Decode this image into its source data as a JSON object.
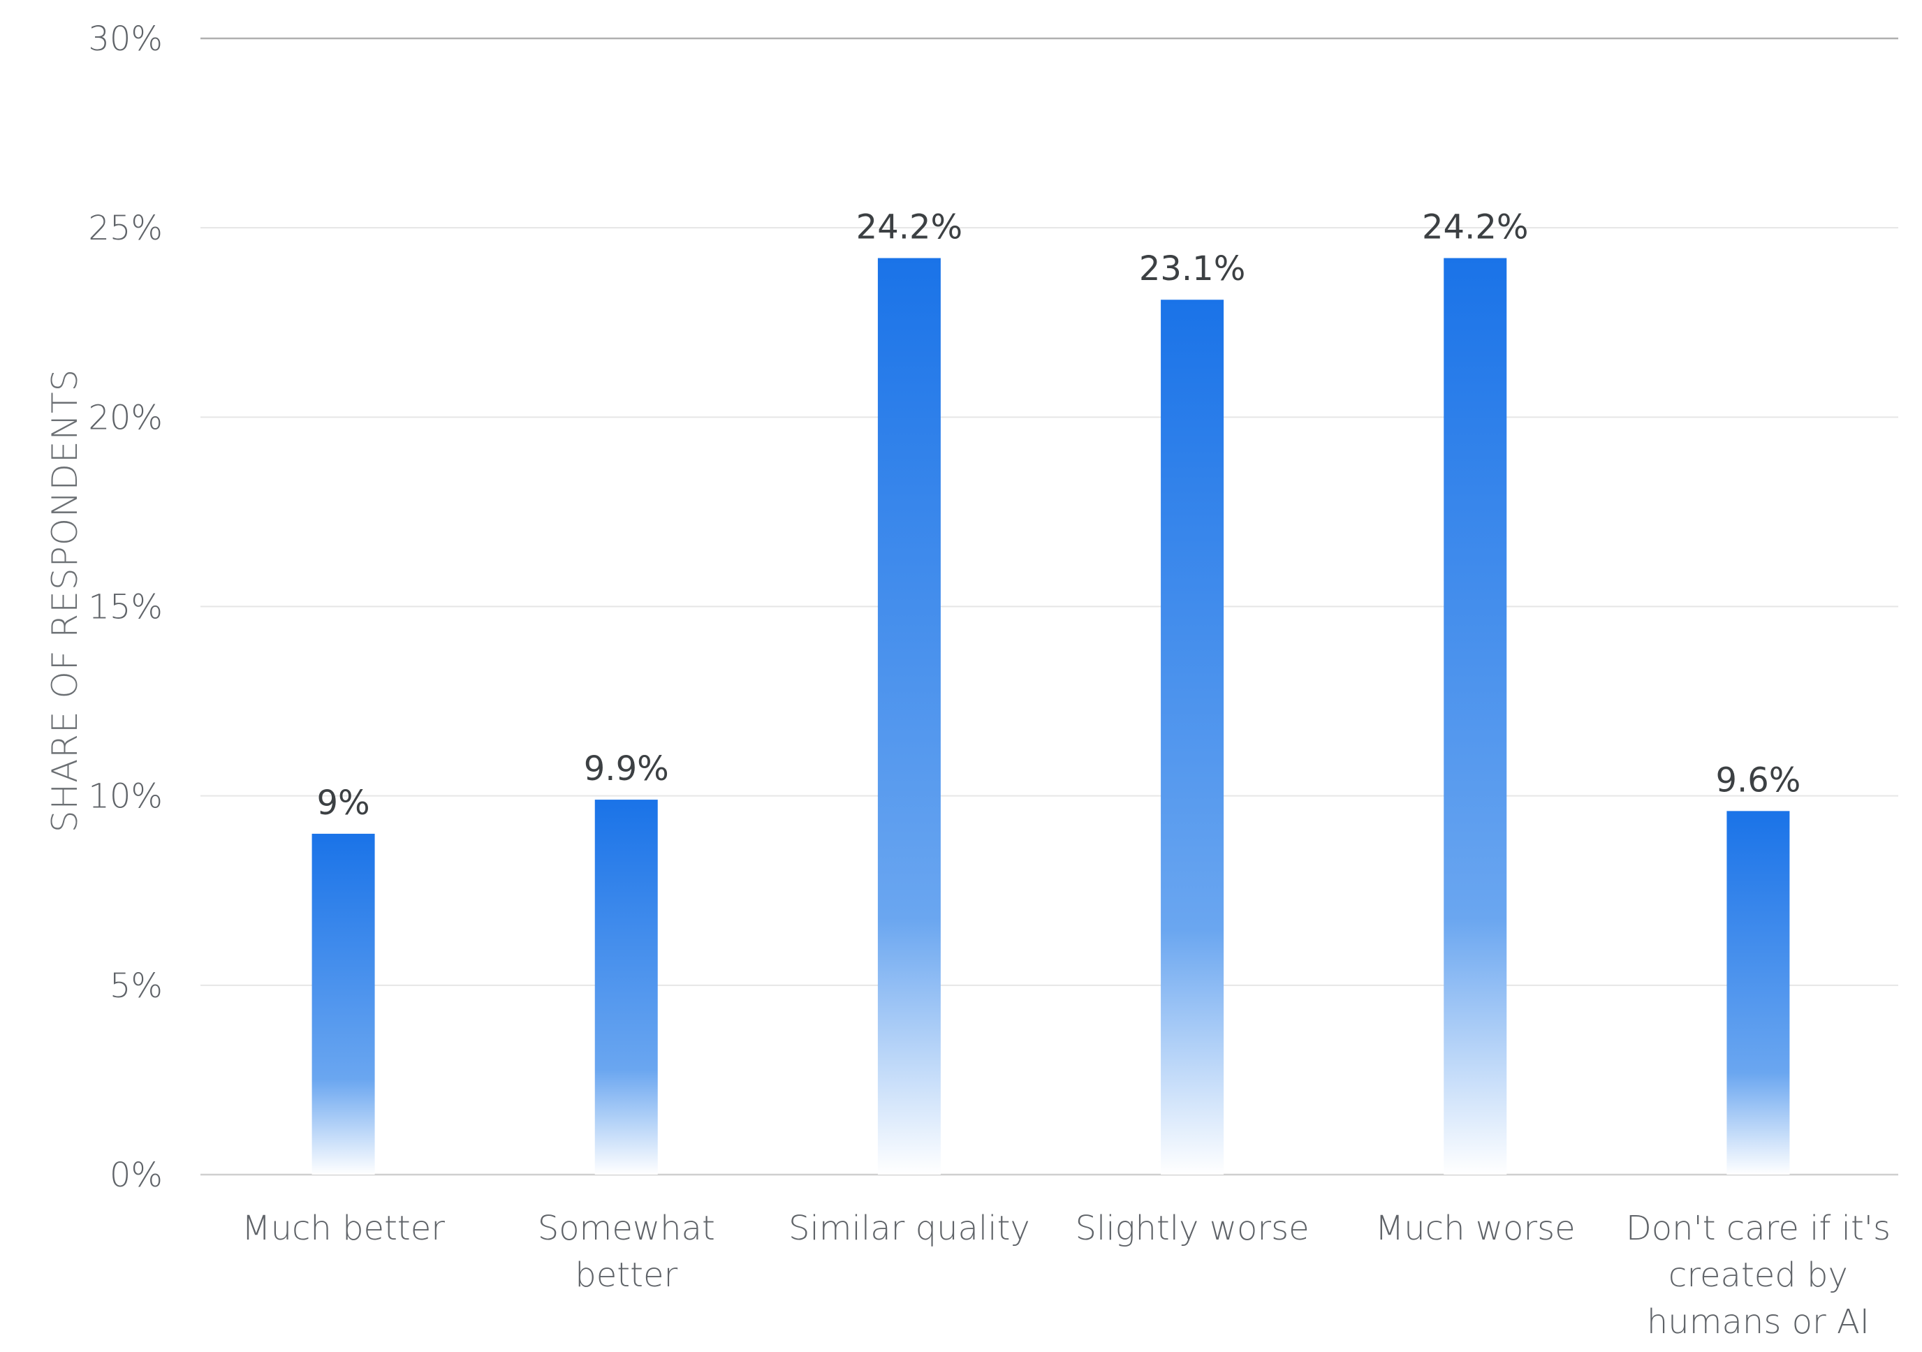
{
  "chart_data": {
    "type": "bar",
    "categories": [
      [
        "Much better"
      ],
      [
        "Somewhat",
        "better"
      ],
      [
        "Similar quality"
      ],
      [
        "Slightly worse"
      ],
      [
        "Much worse"
      ],
      [
        "Don't care if it's",
        "created by",
        "humans or AI"
      ]
    ],
    "values": [
      9,
      9.9,
      24.2,
      23.1,
      24.2,
      9.6
    ],
    "value_labels": [
      "9%",
      "9.9%",
      "24.2%",
      "23.1%",
      "24.2%",
      "9.6%"
    ],
    "title": "",
    "xlabel": "",
    "ylabel": "SHARE OF RESPONDENTS",
    "ylim": [
      0,
      30
    ],
    "y_ticks": [
      0,
      5,
      10,
      15,
      20,
      25,
      30
    ],
    "y_tick_labels": [
      "0%",
      "5%",
      "10%",
      "15%",
      "20%",
      "25%",
      "30%"
    ],
    "grid": true,
    "legend": "none",
    "colors": {
      "bar_top": "#1a73e8",
      "bar_mid": "#6aa6f0",
      "bar_bottom": "#ffffff"
    }
  }
}
